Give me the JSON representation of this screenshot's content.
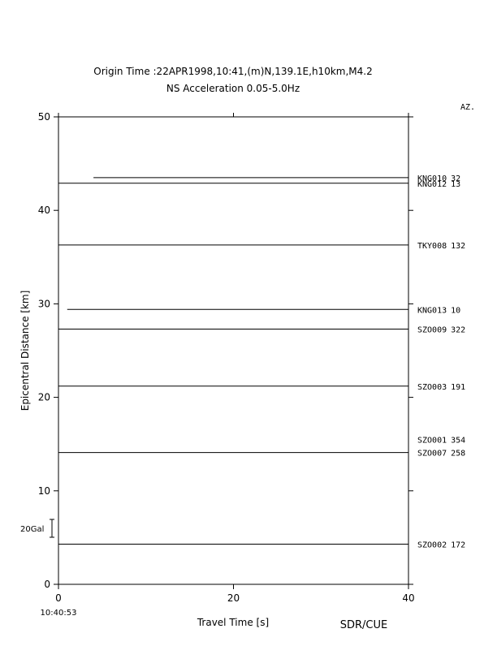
{
  "chart_data": {
    "type": "record-section",
    "title": "Origin Time :22APR1998,10:41,(m)N,139.1E,h10km,M4.2",
    "subtitle": "NS Acceleration 0.05-5.0Hz",
    "x_label": "Travel Time [s]",
    "y_label": "Epicentral Distance [km]",
    "az_header": "AZ.",
    "origin_clock": "10:40:53",
    "scale_label": "20Gal",
    "credit": "SDR/CUE",
    "xlim": [
      0,
      40
    ],
    "xticks": [
      0,
      20,
      40
    ],
    "ylim": [
      0,
      50
    ],
    "yticks": [
      0,
      10,
      20,
      30,
      40,
      50
    ],
    "stations": [
      {
        "name": "KNG010",
        "azimuth": 32,
        "distance": 43.5,
        "start": 4
      },
      {
        "name": "KNG012",
        "azimuth": 13,
        "distance": 42.9,
        "start": 0
      },
      {
        "name": "TKY008",
        "azimuth": 132,
        "distance": 36.3,
        "start": 0
      },
      {
        "name": "KNG013",
        "azimuth": 10,
        "distance": 29.4,
        "start": 1
      },
      {
        "name": "SZO009",
        "azimuth": 322,
        "distance": 27.3,
        "start": 0
      },
      {
        "name": "SZO003",
        "azimuth": 191,
        "distance": 21.2,
        "start": 0
      },
      {
        "name": "SZO001",
        "azimuth": 354,
        "distance": 15.5,
        "start": null
      },
      {
        "name": "SZO007",
        "azimuth": 258,
        "distance": 14.1,
        "start": 0
      },
      {
        "name": "SZO002",
        "azimuth": 172,
        "distance": 4.3,
        "start": 0
      }
    ]
  }
}
